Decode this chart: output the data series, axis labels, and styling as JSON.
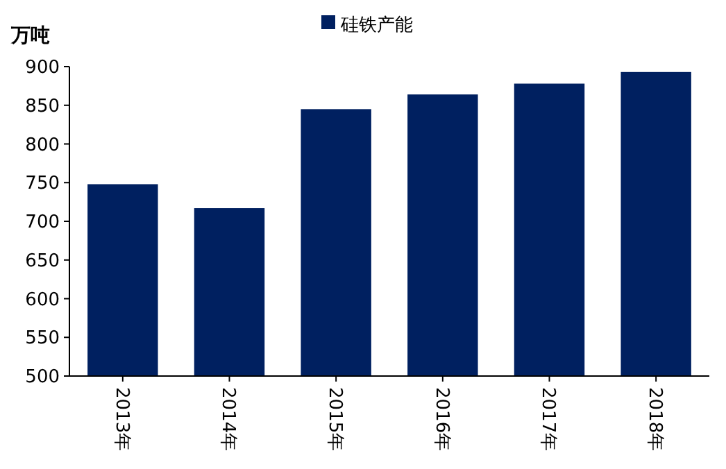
{
  "chart_data": {
    "type": "bar",
    "ylabel": "万吨",
    "categories": [
      "2013年",
      "2014年",
      "2015年",
      "2016年",
      "2017年",
      "2018年"
    ],
    "series": [
      {
        "name": "硅铁产能",
        "color": "#002060",
        "values": [
          748,
          717,
          845,
          864,
          878,
          893
        ]
      }
    ],
    "ylim": [
      500,
      900
    ],
    "yticks": [
      500,
      550,
      600,
      650,
      700,
      750,
      800,
      850,
      900
    ],
    "grid": false,
    "legend": "top"
  }
}
